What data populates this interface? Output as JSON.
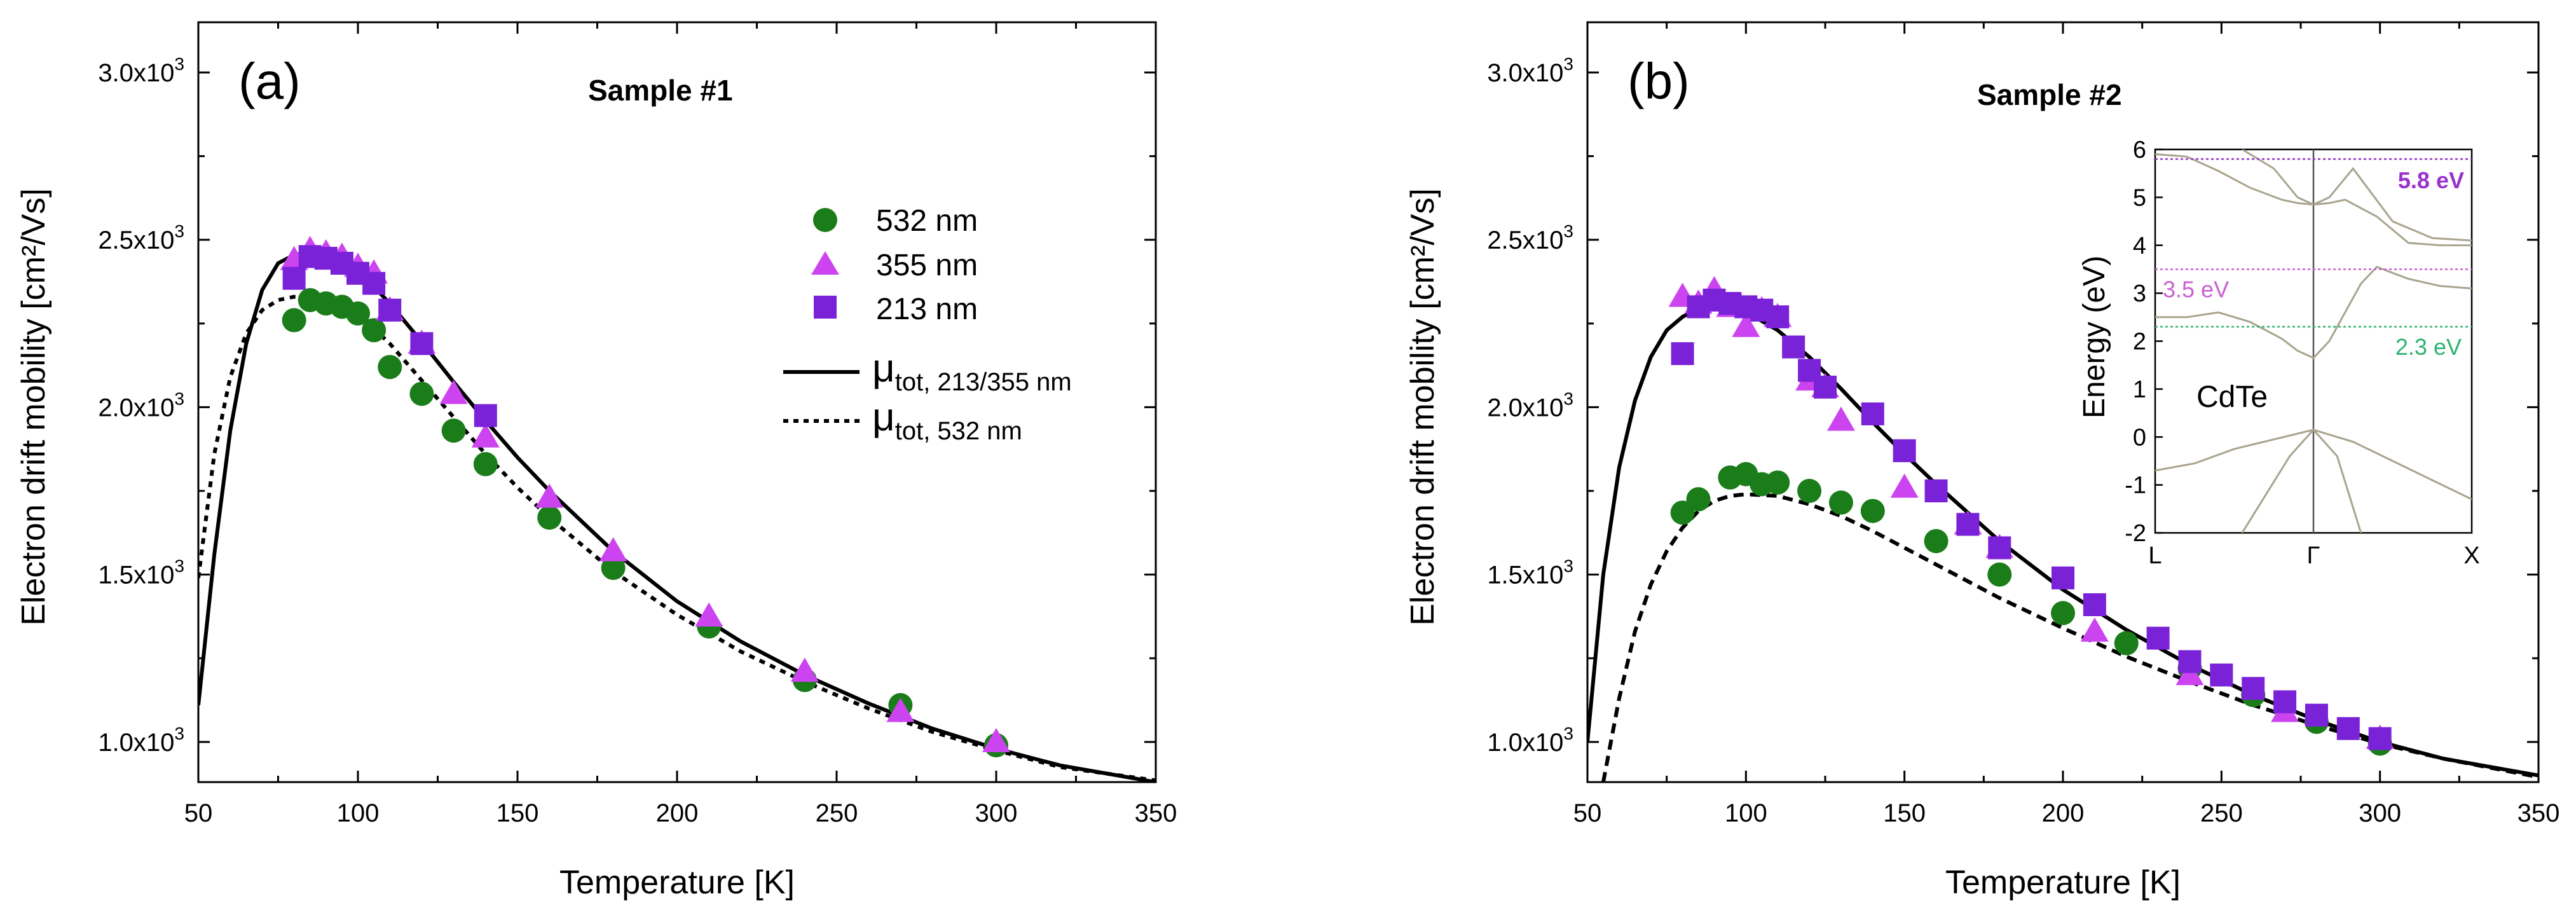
{
  "chart_data": [
    {
      "type": "scatter",
      "panel_label": "(a)",
      "title": "Sample #1",
      "xlabel": "Temperature [K]",
      "ylabel": "Electron drift mobility [cm²/Vs]",
      "xlim": [
        50,
        350
      ],
      "ylim": [
        880,
        3150
      ],
      "xticks": [
        50,
        100,
        150,
        200,
        250,
        300,
        350
      ],
      "yticks": [
        {
          "value": 1000,
          "mant": "1.0x10",
          "exp": "3"
        },
        {
          "value": 1500,
          "mant": "1.5x10",
          "exp": "3"
        },
        {
          "value": 2000,
          "mant": "2.0x10",
          "exp": "3"
        },
        {
          "value": 2500,
          "mant": "2.5x10",
          "exp": "3"
        },
        {
          "value": 3000,
          "mant": "3.0x10",
          "exp": "3"
        }
      ],
      "series": [
        {
          "name": "532 nm",
          "marker": "circle",
          "color": "#1a7d1a",
          "x": [
            80,
            85,
            90,
            95,
            100,
            105,
            110,
            120,
            130,
            140,
            160,
            180,
            210,
            240,
            270,
            300
          ],
          "y": [
            2260,
            2320,
            2310,
            2300,
            2280,
            2230,
            2120,
            2040,
            1930,
            1830,
            1670,
            1520,
            1345,
            1185,
            1110,
            990
          ]
        },
        {
          "name": "355 nm",
          "marker": "triangle",
          "color": "#cc44f0",
          "x": [
            80,
            85,
            90,
            95,
            100,
            105,
            110,
            120,
            130,
            140,
            160,
            180,
            210,
            240,
            270,
            300
          ],
          "y": [
            2440,
            2470,
            2460,
            2450,
            2420,
            2400,
            2290,
            2190,
            2040,
            1910,
            1730,
            1570,
            1375,
            1210,
            1090,
            1000
          ]
        },
        {
          "name": "213 nm",
          "marker": "square",
          "color": "#7a22d8",
          "x": [
            80,
            85,
            90,
            95,
            100,
            105,
            110,
            120,
            140
          ],
          "y": [
            2385,
            2450,
            2445,
            2430,
            2400,
            2370,
            2290,
            2190,
            1975
          ]
        }
      ],
      "curves": [
        {
          "name": "μtot, 213/355 nm",
          "main": "μ",
          "sub": "tot, 213/355 nm",
          "style": "solid",
          "x": [
            50,
            55,
            60,
            65,
            70,
            75,
            80,
            85,
            90,
            95,
            100,
            110,
            120,
            130,
            140,
            150,
            160,
            180,
            200,
            220,
            240,
            260,
            280,
            300,
            320,
            350
          ],
          "y": [
            1110,
            1560,
            1930,
            2190,
            2350,
            2430,
            2455,
            2460,
            2455,
            2440,
            2410,
            2310,
            2195,
            2075,
            1960,
            1850,
            1750,
            1570,
            1420,
            1300,
            1200,
            1115,
            1040,
            980,
            930,
            880
          ]
        },
        {
          "name": "μtot, 532 nm",
          "main": "μ",
          "sub": "tot, 532 nm",
          "style": "dotted",
          "x": [
            50,
            55,
            60,
            65,
            70,
            75,
            80,
            85,
            90,
            95,
            100,
            110,
            120,
            130,
            140,
            150,
            160,
            180,
            200,
            220,
            240,
            260,
            280,
            300,
            320,
            350
          ],
          "y": [
            1490,
            1860,
            2090,
            2220,
            2290,
            2320,
            2330,
            2330,
            2320,
            2305,
            2280,
            2190,
            2080,
            1970,
            1860,
            1760,
            1670,
            1510,
            1380,
            1270,
            1180,
            1100,
            1030,
            975,
            925,
            885
          ]
        }
      ]
    },
    {
      "type": "scatter",
      "panel_label": "(b)",
      "title": "Sample #2",
      "xlabel": "Temperature [K]",
      "ylabel": "Electron drift mobility [cm²/Vs]",
      "xlim": [
        50,
        350
      ],
      "ylim": [
        880,
        3150
      ],
      "xticks": [
        50,
        100,
        150,
        200,
        250,
        300,
        350
      ],
      "yticks": [
        {
          "value": 1000,
          "mant": "1.0x10",
          "exp": "3"
        },
        {
          "value": 1500,
          "mant": "1.5x10",
          "exp": "3"
        },
        {
          "value": 2000,
          "mant": "2.0x10",
          "exp": "3"
        },
        {
          "value": 2500,
          "mant": "2.5x10",
          "exp": "3"
        },
        {
          "value": 3000,
          "mant": "3.0x10",
          "exp": "3"
        }
      ],
      "series": [
        {
          "name": "532 nm",
          "marker": "circle",
          "color": "#1a7d1a",
          "x": [
            80,
            85,
            95,
            100,
            105,
            110,
            120,
            130,
            140,
            160,
            180,
            200,
            220,
            240,
            260,
            280,
            300
          ],
          "y": [
            1685,
            1725,
            1790,
            1800,
            1770,
            1775,
            1750,
            1715,
            1690,
            1600,
            1500,
            1385,
            1295,
            1220,
            1140,
            1060,
            995
          ]
        },
        {
          "name": "355 nm",
          "marker": "triangle",
          "color": "#cc44f0",
          "x": [
            80,
            85,
            90,
            95,
            100,
            105,
            110,
            120,
            125,
            130,
            150,
            170,
            180,
            210,
            240,
            270,
            300
          ],
          "y": [
            2330,
            2310,
            2350,
            2300,
            2240,
            2290,
            2270,
            2080,
            2060,
            1960,
            1760,
            1650,
            1580,
            1330,
            1200,
            1090,
            1010
          ]
        },
        {
          "name": "213 nm",
          "marker": "square",
          "color": "#7a22d8",
          "x": [
            80,
            85,
            90,
            95,
            100,
            105,
            110,
            115,
            120,
            125,
            140,
            150,
            160,
            170,
            180,
            200,
            210,
            230,
            240,
            250,
            260,
            270,
            280,
            290,
            300
          ],
          "y": [
            2160,
            2300,
            2320,
            2310,
            2300,
            2290,
            2270,
            2180,
            2110,
            2060,
            1980,
            1870,
            1750,
            1650,
            1580,
            1490,
            1410,
            1310,
            1240,
            1200,
            1160,
            1120,
            1080,
            1040,
            1010
          ]
        }
      ],
      "curves": [
        {
          "name": "μtot, 213/355 nm",
          "style": "solid",
          "x": [
            50,
            55,
            60,
            65,
            70,
            75,
            80,
            85,
            90,
            95,
            100,
            110,
            120,
            130,
            140,
            150,
            160,
            180,
            200,
            220,
            240,
            260,
            280,
            300,
            320,
            350
          ],
          "y": [
            1000,
            1500,
            1820,
            2020,
            2150,
            2230,
            2270,
            2295,
            2305,
            2300,
            2285,
            2230,
            2150,
            2055,
            1955,
            1860,
            1770,
            1600,
            1455,
            1335,
            1230,
            1140,
            1065,
            1000,
            950,
            900
          ]
        },
        {
          "name": "μtot, 532 nm",
          "style": "dashed",
          "x": [
            55,
            60,
            65,
            70,
            75,
            80,
            85,
            90,
            95,
            100,
            110,
            120,
            130,
            140,
            150,
            160,
            180,
            200,
            220,
            240,
            260,
            280,
            300,
            320,
            350
          ],
          "y": [
            880,
            1130,
            1330,
            1470,
            1570,
            1640,
            1690,
            1720,
            1735,
            1740,
            1735,
            1710,
            1675,
            1630,
            1580,
            1530,
            1430,
            1340,
            1255,
            1180,
            1110,
            1050,
            995,
            950,
            895
          ]
        }
      ],
      "inset": {
        "type": "line",
        "title": "CdTe",
        "ylabel": "Energy (eV)",
        "ylim": [
          -2,
          6
        ],
        "yticks": [
          "-2",
          "-1",
          "0",
          "1",
          "2",
          "3",
          "4",
          "5",
          "6"
        ],
        "xticks": [
          "L",
          "Γ",
          "X"
        ],
        "levels": [
          {
            "label": "5.8 eV",
            "value": 5.8,
            "color": "#9932cc"
          },
          {
            "label": "3.5 eV",
            "value": 3.5,
            "color": "#c85fd2"
          },
          {
            "label": "2.3 eV",
            "value": 2.3,
            "color": "#2db370"
          }
        ],
        "bands": [
          {
            "k": [
              0,
              0.25,
              0.5,
              0.75,
              1.0,
              1.25,
              1.5,
              1.75,
              2.0
            ],
            "E": [
              -0.7,
              -0.55,
              -0.25,
              -0.05,
              0.15,
              -0.1,
              -0.5,
              -0.9,
              -1.3
            ]
          },
          {
            "k": [
              0.55,
              0.7,
              0.85,
              1.0,
              1.15,
              1.3
            ],
            "E": [
              -2.0,
              -1.2,
              -0.4,
              0.15,
              -0.4,
              -2.0
            ]
          },
          {
            "k": [
              0,
              0.2,
              0.4,
              0.6,
              0.8,
              0.9,
              1.0,
              1.1,
              1.2,
              1.3,
              1.4,
              1.6,
              1.8,
              2.0
            ],
            "E": [
              2.5,
              2.5,
              2.6,
              2.4,
              2.05,
              1.8,
              1.65,
              2.0,
              2.6,
              3.2,
              3.55,
              3.3,
              3.15,
              3.1
            ]
          },
          {
            "k": [
              0,
              0.2,
              0.4,
              0.6,
              0.8,
              0.9,
              1.0,
              1.1,
              1.2,
              1.4,
              1.6,
              1.8,
              2.0
            ],
            "E": [
              5.9,
              5.85,
              5.55,
              5.2,
              4.95,
              4.88,
              4.85,
              4.88,
              4.95,
              4.6,
              4.05,
              4.0,
              4.0
            ]
          },
          {
            "k": [
              0.55,
              0.75,
              0.9,
              1.0,
              1.1,
              1.25,
              1.5,
              1.75,
              2.0
            ],
            "E": [
              6.0,
              5.6,
              5.0,
              4.85,
              5.0,
              5.6,
              4.5,
              4.15,
              4.1
            ]
          }
        ]
      }
    }
  ]
}
